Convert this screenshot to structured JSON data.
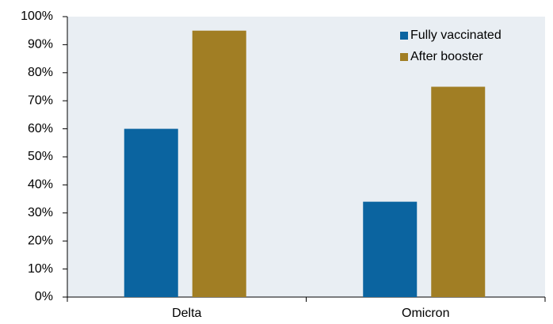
{
  "chart_data": {
    "type": "bar",
    "categories": [
      "Delta",
      "Omicron"
    ],
    "series": [
      {
        "name": "Fully vaccinated",
        "color": "#0b64a0",
        "values": [
          60,
          34
        ]
      },
      {
        "name": "After booster",
        "color": "#a17e24",
        "values": [
          95,
          75
        ]
      }
    ],
    "ylim": [
      0,
      100
    ],
    "yticks": [
      {
        "value": 0,
        "label": "0%"
      },
      {
        "value": 10,
        "label": "10%"
      },
      {
        "value": 20,
        "label": "20%"
      },
      {
        "value": 30,
        "label": "30%"
      },
      {
        "value": 40,
        "label": "40%"
      },
      {
        "value": 50,
        "label": "50%"
      },
      {
        "value": 60,
        "label": "60%"
      },
      {
        "value": 70,
        "label": "70%"
      },
      {
        "value": 80,
        "label": "80%"
      },
      {
        "value": 90,
        "label": "90%"
      },
      {
        "value": 100,
        "label": "100%"
      }
    ],
    "grid": false,
    "legend": "top-right",
    "background": "#e9eef3"
  }
}
